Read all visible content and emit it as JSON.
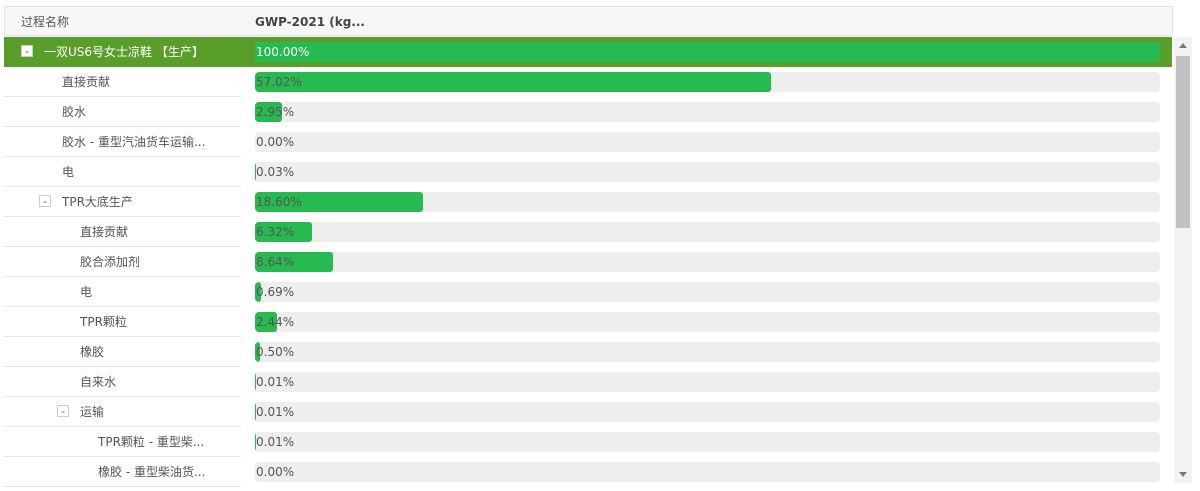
{
  "header": {
    "name_column": "过程名称",
    "value_column": "GWP-2021 (kg..."
  },
  "table": {
    "rows": [
      {
        "toggle": "-",
        "name": "一双US6号女士凉鞋 【生产】",
        "value": 100.0,
        "label": "100.00%",
        "children": [
          {
            "name": "直接贡献",
            "value": 57.02,
            "label": "57.02%"
          },
          {
            "name": "胶水",
            "value": 2.95,
            "label": "2.95%"
          },
          {
            "name": "胶水 - 重型汽油货车运输...",
            "value": 0.0,
            "label": "0.00%"
          },
          {
            "name": "电",
            "value": 0.03,
            "label": "0.03%"
          },
          {
            "toggle": "-",
            "name": "TPR大底生产",
            "value": 18.6,
            "label": "18.60%",
            "children": [
              {
                "name": "直接贡献",
                "value": 6.32,
                "label": "6.32%"
              },
              {
                "name": "胶合添加剂",
                "value": 8.64,
                "label": "8.64%"
              },
              {
                "name": "电",
                "value": 0.69,
                "label": "0.69%"
              },
              {
                "name": "TPR颗粒",
                "value": 2.44,
                "label": "2.44%"
              },
              {
                "name": "橡胶",
                "value": 0.5,
                "label": "0.50%"
              },
              {
                "name": "自来水",
                "value": 0.01,
                "label": "0.01%"
              },
              {
                "toggle": "-",
                "name": "运输",
                "value": 0.01,
                "label": "0.01%",
                "children": [
                  {
                    "name": "TPR颗粒 - 重型柴...",
                    "value": 0.01,
                    "label": "0.01%"
                  },
                  {
                    "name": "橡胶 - 重型柴油货...",
                    "value": 0.0,
                    "label": "0.00%"
                  }
                ]
              }
            ]
          }
        ]
      }
    ]
  }
}
